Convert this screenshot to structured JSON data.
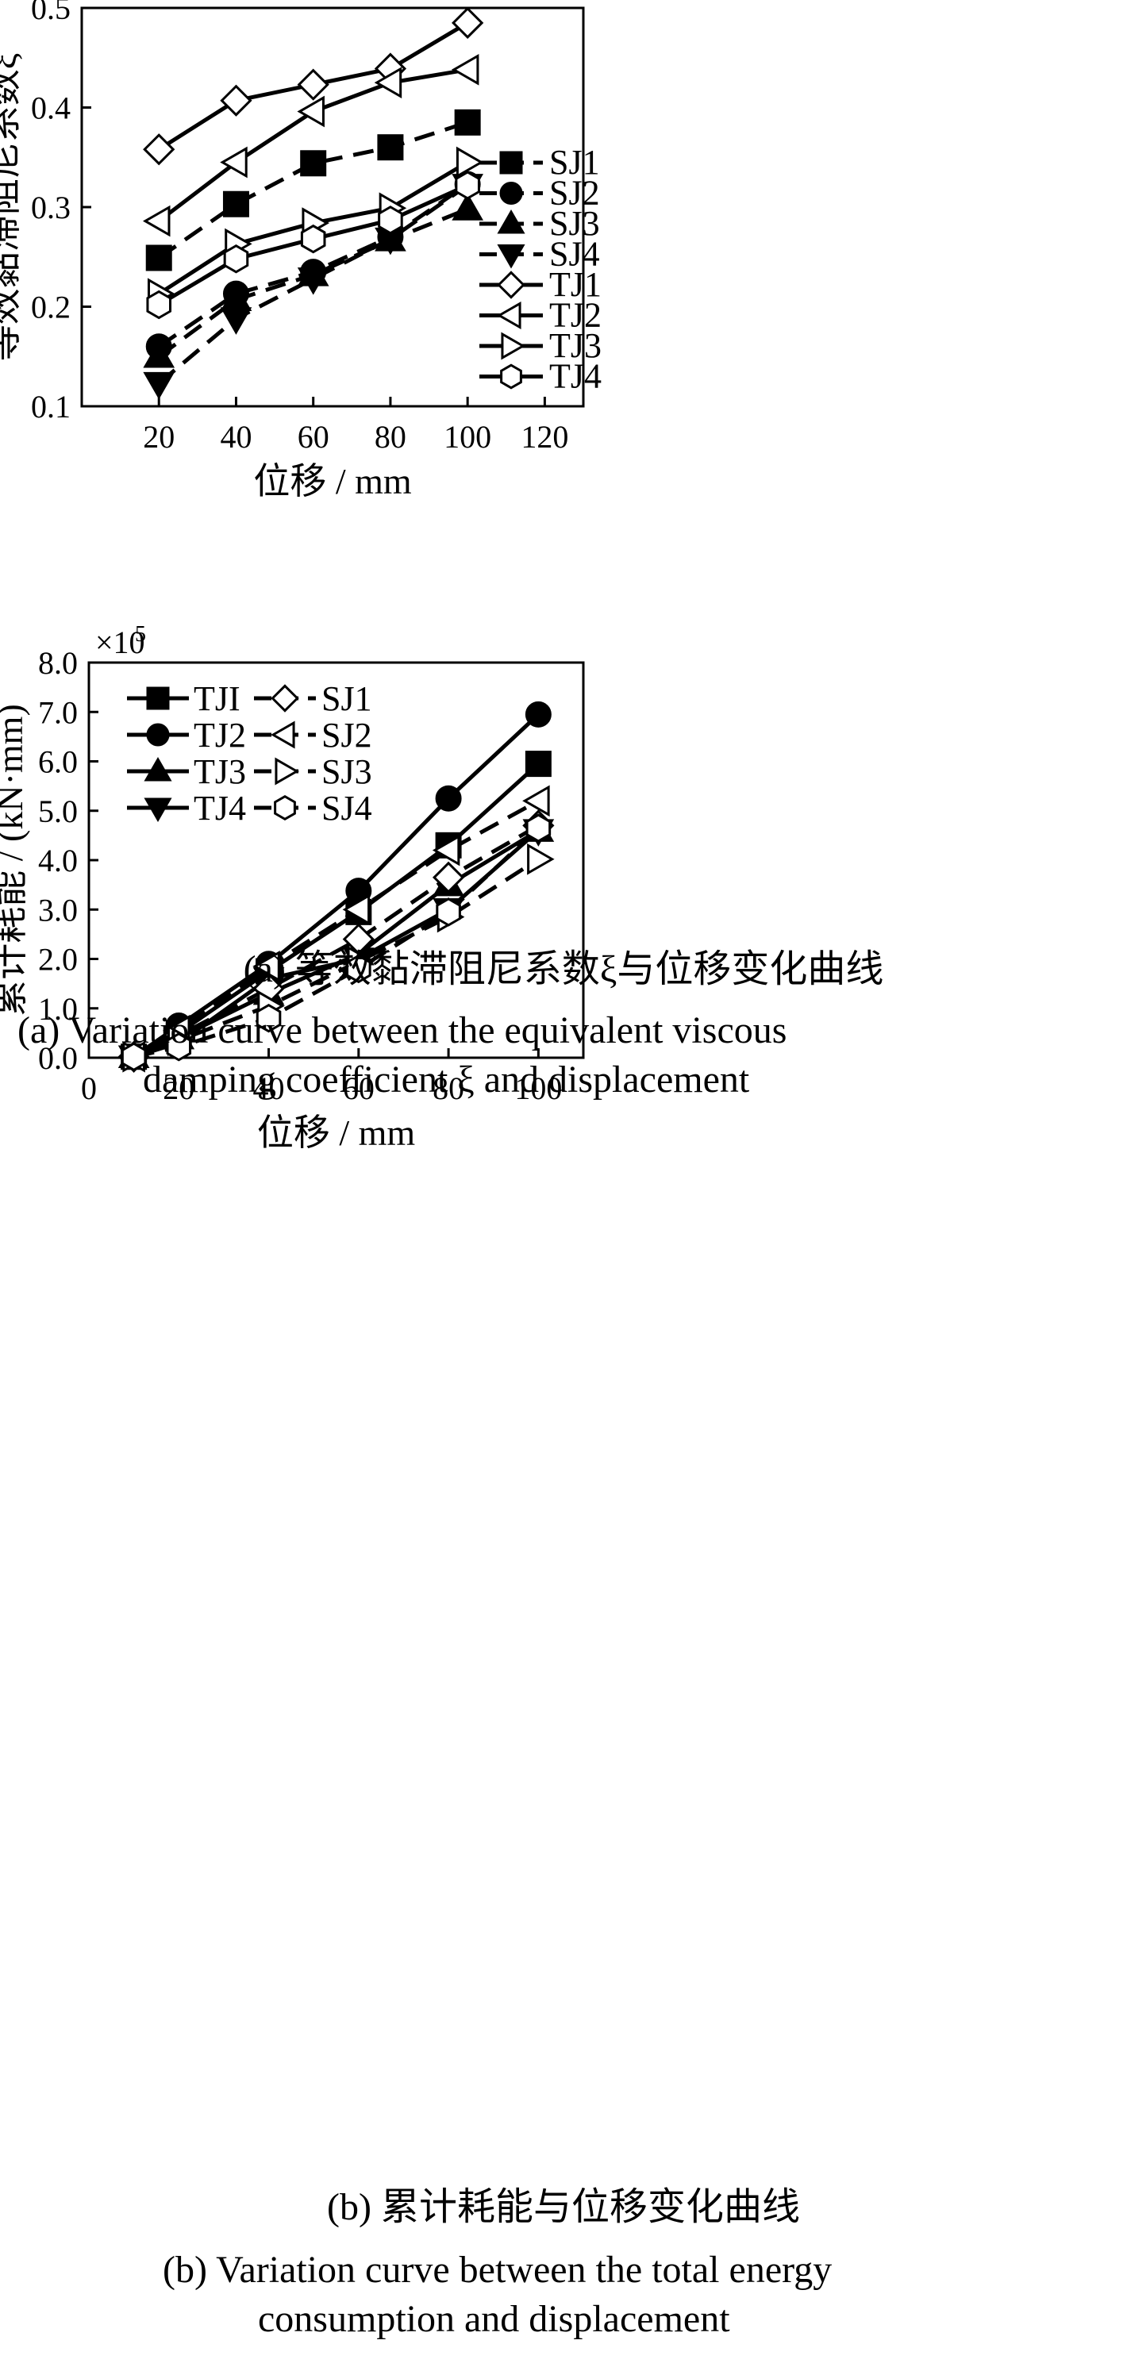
{
  "chart_data": [
    {
      "type": "line",
      "ylabel": "等效黏滞阻尼系数ξ",
      "xlabel": "位移 / mm",
      "xlim": [
        0,
        130
      ],
      "ylim": [
        0.1,
        0.5
      ],
      "xticks": [
        20,
        40,
        60,
        80,
        100,
        120
      ],
      "yticks": [
        0.1,
        0.2,
        0.3,
        0.4,
        0.5
      ],
      "legend_position": "right",
      "x": [
        20,
        40,
        60,
        80,
        100
      ],
      "series": [
        {
          "name": "SJ1",
          "marker": "square",
          "filled": true,
          "dashed": true,
          "values": [
            0.249,
            0.303,
            0.344,
            0.36,
            0.385
          ]
        },
        {
          "name": "SJ2",
          "marker": "circle",
          "filled": true,
          "dashed": true,
          "values": [
            0.16,
            0.213,
            0.235,
            0.27,
            0.323
          ]
        },
        {
          "name": "SJ3",
          "marker": "triangle-up",
          "filled": true,
          "dashed": true,
          "values": [
            0.15,
            0.207,
            0.232,
            0.267,
            0.298
          ]
        },
        {
          "name": "SJ4",
          "marker": "triangle-down",
          "filled": true,
          "dashed": true,
          "values": [
            0.123,
            0.188,
            0.228,
            0.268,
            0.322
          ]
        },
        {
          "name": "TJ1",
          "marker": "diamond",
          "filled": false,
          "dashed": false,
          "values": [
            0.358,
            0.407,
            0.423,
            0.439,
            0.485
          ]
        },
        {
          "name": "TJ2",
          "marker": "triangle-left",
          "filled": false,
          "dashed": false,
          "values": [
            0.286,
            0.345,
            0.396,
            0.425,
            0.438
          ]
        },
        {
          "name": "TJ3",
          "marker": "triangle-right",
          "filled": false,
          "dashed": false,
          "values": [
            0.213,
            0.263,
            0.284,
            0.299,
            0.345
          ]
        },
        {
          "name": "TJ4",
          "marker": "hexagon",
          "filled": false,
          "dashed": false,
          "values": [
            0.202,
            0.248,
            0.268,
            0.287,
            0.322
          ]
        }
      ]
    },
    {
      "type": "line",
      "ylabel": "累计耗能 / (kN·mm)",
      "xlabel": "位移 / mm",
      "y_multiplier": "×10",
      "y_multiplier_exp": "5",
      "xlim": [
        0,
        110
      ],
      "ylim": [
        0.0,
        8.0
      ],
      "xticks": [
        0,
        20,
        40,
        60,
        80,
        100
      ],
      "yticks": [
        0.0,
        1.0,
        2.0,
        3.0,
        4.0,
        5.0,
        6.0,
        7.0,
        8.0
      ],
      "legend_position": "top-left",
      "x": [
        10,
        20,
        40,
        60,
        80,
        100
      ],
      "series": [
        {
          "name": "TJI",
          "marker": "square",
          "filled": true,
          "dashed": false,
          "values": [
            0.02,
            0.5,
            1.75,
            2.95,
            4.3,
            5.95
          ]
        },
        {
          "name": "TJ2",
          "marker": "circle",
          "filled": true,
          "dashed": false,
          "values": [
            0.02,
            0.65,
            1.9,
            3.38,
            5.25,
            6.95
          ]
        },
        {
          "name": "TJ3",
          "marker": "triangle-up",
          "filled": true,
          "dashed": false,
          "values": [
            0.02,
            0.4,
            1.3,
            2.1,
            3.5,
            4.6
          ]
        },
        {
          "name": "TJ4",
          "marker": "triangle-down",
          "filled": true,
          "dashed": false,
          "values": [
            0.02,
            0.3,
            1.6,
            2.0,
            3.0,
            4.6
          ]
        },
        {
          "name": "SJ1",
          "marker": "diamond",
          "filled": false,
          "dashed": true,
          "values": [
            0.02,
            0.45,
            1.4,
            2.4,
            3.65,
            4.7
          ]
        },
        {
          "name": "SJ2",
          "marker": "triangle-left",
          "filled": false,
          "dashed": true,
          "values": [
            0.02,
            0.55,
            1.85,
            3.0,
            4.2,
            5.2
          ]
        },
        {
          "name": "SJ3",
          "marker": "triangle-right",
          "filled": false,
          "dashed": true,
          "values": [
            0.02,
            0.35,
            1.05,
            1.95,
            2.85,
            4.02
          ]
        },
        {
          "name": "SJ4",
          "marker": "hexagon",
          "filled": false,
          "dashed": true,
          "values": [
            0.02,
            0.22,
            0.8,
            1.8,
            2.95,
            4.65
          ]
        }
      ]
    }
  ],
  "captions": {
    "a_cn": "(a)  等效黏滞阻尼系数ξ与位移变化曲线",
    "a_en_1": "(a)  Variation curve between the equivalent viscous",
    "a_en_2": "damping coefficient ξ and displacement",
    "b_cn": "(b)  累计耗能与位移变化曲线",
    "b_en_1": "(b)  Variation curve between the total energy",
    "b_en_2": "consumption and displacement"
  }
}
